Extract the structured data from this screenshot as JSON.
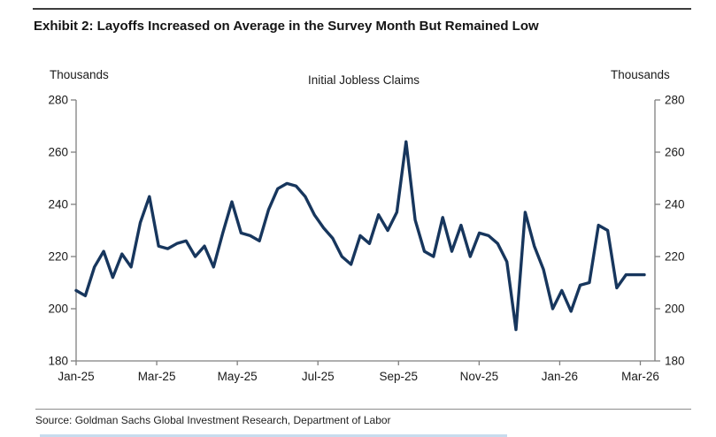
{
  "exhibit": {
    "title": "Exhibit 2: Layoffs Increased on Average in the Survey Month But Remained Low",
    "source": "Source: Goldman Sachs Global Investment Research, Department of Labor"
  },
  "colors": {
    "line": "#17365d",
    "axis": "#7f7f7f",
    "tick_text": "#1a1a1a",
    "top_rule": "#3d3d3d",
    "bottom_accent": "#b9d3ea"
  },
  "chart_data": {
    "type": "line",
    "title": "Initial Jobless Claims",
    "left_axis_label": "Thousands",
    "right_axis_label": "Thousands",
    "xlabel": "",
    "ylabel": "Thousands",
    "ylim": [
      180,
      280
    ],
    "y_ticks": [
      180,
      200,
      220,
      240,
      260,
      280
    ],
    "x_tick_labels": [
      "Jan-25",
      "Mar-25",
      "May-25",
      "Jul-25",
      "Sep-25",
      "Nov-25",
      "Jan-26",
      "Mar-26"
    ],
    "frequency": "weekly",
    "grid": false,
    "dual_y_axis": true,
    "legend": "none",
    "series": [
      {
        "name": "Initial Jobless Claims",
        "color": "#17365d",
        "values": [
          207,
          205,
          216,
          222,
          212,
          221,
          216,
          233,
          243,
          224,
          223,
          225,
          226,
          220,
          224,
          216,
          229,
          241,
          229,
          228,
          226,
          238,
          246,
          248,
          247,
          243,
          236,
          231,
          227,
          220,
          217,
          228,
          225,
          236,
          230,
          237,
          264,
          234,
          222,
          220,
          235,
          222,
          232,
          220,
          229,
          228,
          225,
          218,
          192,
          237,
          224,
          215,
          200,
          207,
          199,
          209,
          210,
          232,
          230,
          208,
          213,
          213,
          213
        ]
      }
    ]
  }
}
